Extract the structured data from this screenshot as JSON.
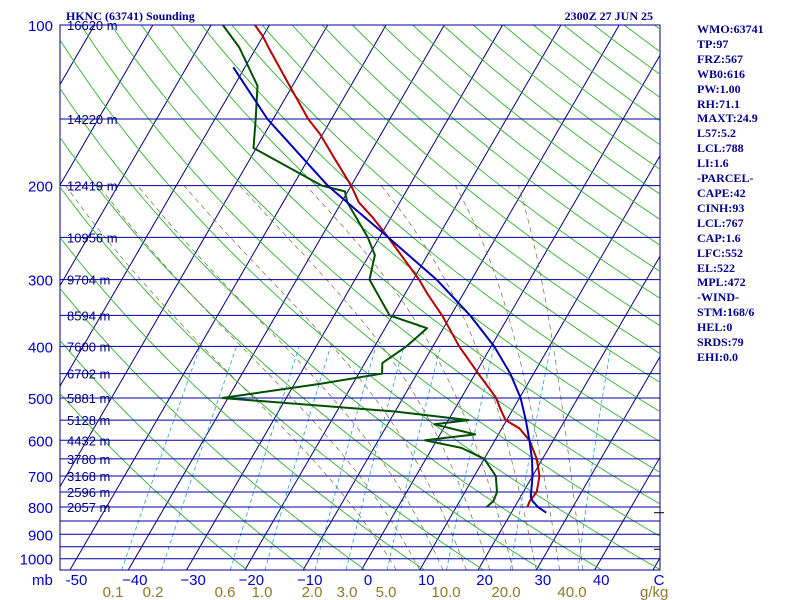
{
  "header": {
    "station_title": "HKNC (63741) Sounding",
    "valid_time": "2300Z 27 JUN 25"
  },
  "side_panel": {
    "items": [
      "WMO:63741",
      "TP:97",
      "FRZ:567",
      "WB0:616",
      "PW:1.00",
      "RH:71.1",
      "MAXT:24.9",
      "L57:5.2",
      "LCL:788",
      "LI:1.6",
      "-PARCEL-",
      "CAPE:42",
      "CINH:93",
      "LCL:767",
      "CAP:1.6",
      "LFC:552",
      "EL:522",
      "MPL:472",
      "-WIND-",
      "STM:168/6",
      "HEL:0",
      "SRDS:79",
      "EHI:0.0"
    ]
  },
  "chart_data": {
    "type": "skew-t",
    "pressure_axis_unit": "mb",
    "temperature_axis_unit": "C",
    "mixing_ratio_unit": "g/kg",
    "pressure_ticks": [
      100,
      200,
      300,
      400,
      500,
      600,
      700,
      800,
      900,
      1000
    ],
    "temperature_ticks": [
      -50,
      -40,
      -30,
      -20,
      -10,
      0,
      10,
      20,
      30,
      40
    ],
    "temperature_tick_labels": [
      "-50",
      "−40",
      "−30",
      "−20",
      "−10",
      "0",
      "10",
      "20",
      "30",
      "40"
    ],
    "temperature_end_label": "C",
    "mixing_ratio_ticks": [
      "0.1",
      "0.2",
      "0.6",
      "1.0",
      "2.0",
      "3.0",
      "5.0",
      "10.0",
      "20.0",
      "40.0"
    ],
    "height_labels": [
      {
        "p": 100,
        "label": "16620 m"
      },
      {
        "p": 150,
        "label": "14220 m"
      },
      {
        "p": 200,
        "label": "12419 m"
      },
      {
        "p": 250,
        "label": "10956 m"
      },
      {
        "p": 300,
        "label": "9704 m"
      },
      {
        "p": 350,
        "label": "8594 m"
      },
      {
        "p": 400,
        "label": "7600 m"
      },
      {
        "p": 450,
        "label": "6702 m"
      },
      {
        "p": 500,
        "label": "5881 m"
      },
      {
        "p": 550,
        "label": "5128 m"
      },
      {
        "p": 600,
        "label": "4432 m"
      },
      {
        "p": 650,
        "label": "3780 m"
      },
      {
        "p": 700,
        "label": "3168 m"
      },
      {
        "p": 750,
        "label": "2596 m"
      },
      {
        "p": 800,
        "label": "2057 m"
      }
    ],
    "series": [
      {
        "name": "temperature",
        "color": "#b40000",
        "points": [
          [
            800,
            22.2
          ],
          [
            780,
            22.0
          ],
          [
            750,
            22.3
          ],
          [
            700,
            21.2
          ],
          [
            650,
            19.0
          ],
          [
            600,
            15.9
          ],
          [
            570,
            13.0
          ],
          [
            550,
            9.8
          ],
          [
            520,
            7.5
          ],
          [
            500,
            6.0
          ],
          [
            470,
            2.8
          ],
          [
            450,
            0.5
          ],
          [
            420,
            -3.0
          ],
          [
            400,
            -5.5
          ],
          [
            370,
            -9.0
          ],
          [
            350,
            -11.5
          ],
          [
            320,
            -16.0
          ],
          [
            300,
            -19.0
          ],
          [
            270,
            -24.5
          ],
          [
            250,
            -28.5
          ],
          [
            230,
            -33.0
          ],
          [
            215,
            -37.0
          ],
          [
            200,
            -40.0
          ],
          [
            180,
            -45.0
          ],
          [
            160,
            -50.5
          ],
          [
            150,
            -54.0
          ],
          [
            130,
            -60.5
          ],
          [
            110,
            -68.0
          ],
          [
            105,
            -70.0
          ],
          [
            100,
            -72.5
          ]
        ]
      },
      {
        "name": "dewpoint",
        "color": "#005000",
        "points": [
          [
            800,
            15.2
          ],
          [
            780,
            15.8
          ],
          [
            750,
            15.5
          ],
          [
            700,
            13.7
          ],
          [
            650,
            10.0
          ],
          [
            620,
            5.0
          ],
          [
            600,
            -2.0
          ],
          [
            585,
            6.0
          ],
          [
            560,
            -2.0
          ],
          [
            550,
            3.5
          ],
          [
            530,
            -10.0
          ],
          [
            500,
            -41.0
          ],
          [
            470,
            -25.5
          ],
          [
            450,
            -16.0
          ],
          [
            430,
            -17.0
          ],
          [
            400,
            -14.5
          ],
          [
            370,
            -12.8
          ],
          [
            350,
            -20.5
          ],
          [
            300,
            -27.5
          ],
          [
            270,
            -29.0
          ],
          [
            250,
            -32.0
          ],
          [
            215,
            -39.0
          ],
          [
            205,
            -40.5
          ],
          [
            200,
            -45.0
          ],
          [
            170,
            -60.5
          ],
          [
            150,
            -63.0
          ],
          [
            130,
            -66.0
          ],
          [
            110,
            -73.0
          ],
          [
            100,
            -78.0
          ]
        ]
      },
      {
        "name": "parcel",
        "color": "#0000b4",
        "points": [
          [
            820,
            26.0
          ],
          [
            800,
            24.0
          ],
          [
            780,
            22.5
          ],
          [
            767,
            21.8
          ],
          [
            700,
            20.0
          ],
          [
            650,
            18.2
          ],
          [
            600,
            15.9
          ],
          [
            552,
            13.4
          ],
          [
            500,
            10.2
          ],
          [
            450,
            6.0
          ],
          [
            400,
            0.5
          ],
          [
            350,
            -6.7
          ],
          [
            300,
            -16.0
          ],
          [
            250,
            -28.5
          ],
          [
            200,
            -44.0
          ],
          [
            150,
            -61.0
          ],
          [
            120,
            -72.0
          ]
        ]
      }
    ]
  }
}
